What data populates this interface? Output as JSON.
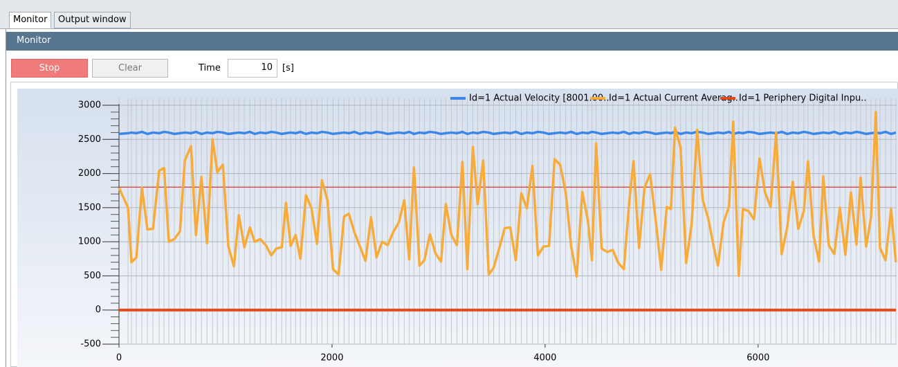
{
  "tabs": [
    "Monitor",
    "Output window"
  ],
  "header": {
    "title": "Monitor"
  },
  "toolbar": {
    "stop": "Stop",
    "clear": "Clear",
    "time_label": "Time",
    "time_value": 10,
    "time_unit": "[s]"
  },
  "chart_data": {
    "type": "line",
    "x": [
      0,
      85,
      117,
      163,
      215,
      267,
      319,
      377,
      423,
      468,
      520,
      572,
      618,
      676,
      722,
      774,
      826,
      878,
      923,
      975,
      1027,
      1079,
      1125,
      1177,
      1229,
      1274,
      1326,
      1378,
      1430,
      1476,
      1528,
      1567,
      1612,
      1658,
      1703,
      1755,
      1807,
      1859,
      1905,
      1957,
      2009,
      2061,
      2113,
      2158,
      2210,
      2262,
      2314,
      2366,
      2418,
      2470,
      2522,
      2574,
      2626,
      2678,
      2724,
      2769,
      2821,
      2867,
      2919,
      2971,
      3023,
      3068,
      3120,
      3172,
      3224,
      3270,
      3322,
      3367,
      3419,
      3471,
      3517,
      3569,
      3621,
      3673,
      3725,
      3777,
      3829,
      3881,
      3933,
      3985,
      4037,
      4089,
      4141,
      4193,
      4245,
      4297,
      4349,
      4401,
      4440,
      4479,
      4531,
      4583,
      4635,
      4687,
      4739,
      4791,
      4830,
      4882,
      4934,
      4986,
      5038,
      5090,
      5142,
      5181,
      5220,
      5272,
      5324,
      5376,
      5428,
      5480,
      5532,
      5584,
      5623,
      5675,
      5727,
      5766,
      5818,
      5857,
      5909,
      5961,
      6013,
      6065,
      6117,
      6169,
      6221,
      6273,
      6325,
      6377,
      6429,
      6468,
      6520,
      6572,
      6611,
      6663,
      6715,
      6767,
      6819,
      6871,
      6923,
      6962,
      7014,
      7059,
      7105,
      7144,
      7196,
      7248,
      7293
    ],
    "series": [
      {
        "name": "Id=1 Actual Velocity [8001.00..",
        "color": "#3d85e6",
        "values": [
          2580,
          2590,
          2600,
          2590,
          2610,
          2580,
          2600,
          2590,
          2610,
          2600,
          2580,
          2590,
          2600,
          2590,
          2610,
          2580,
          2600,
          2590,
          2610,
          2600,
          2580,
          2590,
          2600,
          2590,
          2610,
          2580,
          2600,
          2590,
          2610,
          2600,
          2580,
          2590,
          2600,
          2590,
          2610,
          2580,
          2600,
          2590,
          2610,
          2600,
          2580,
          2590,
          2600,
          2590,
          2610,
          2580,
          2600,
          2590,
          2610,
          2600,
          2580,
          2590,
          2600,
          2590,
          2610,
          2580,
          2600,
          2590,
          2610,
          2600,
          2580,
          2590,
          2600,
          2590,
          2610,
          2580,
          2600,
          2590,
          2610,
          2600,
          2580,
          2590,
          2600,
          2590,
          2610,
          2580,
          2600,
          2590,
          2610,
          2600,
          2580,
          2590,
          2600,
          2590,
          2610,
          2580,
          2600,
          2590,
          2610,
          2600,
          2580,
          2590,
          2600,
          2590,
          2610,
          2580,
          2600,
          2590,
          2610,
          2600,
          2580,
          2590,
          2600,
          2590,
          2610,
          2580,
          2600,
          2590,
          2610,
          2600,
          2580,
          2590,
          2600,
          2590,
          2610,
          2580,
          2600,
          2590,
          2610,
          2600,
          2580,
          2590,
          2600,
          2590,
          2610,
          2580,
          2600,
          2590,
          2610,
          2600,
          2580,
          2590,
          2600,
          2590,
          2610,
          2580,
          2600,
          2590,
          2610,
          2600,
          2580,
          2590,
          2600,
          2590,
          2610,
          2580,
          2600
        ]
      },
      {
        "name": "Id=1 Actual Current Averag..",
        "color": "#f7ab3a",
        "values": [
          1790,
          1500,
          700,
          770,
          1790,
          1180,
          1190,
          2040,
          2080,
          1000,
          1040,
          1150,
          2190,
          2400,
          1100,
          1950,
          980,
          2500,
          2020,
          2130,
          930,
          640,
          1390,
          920,
          1210,
          1000,
          1040,
          950,
          800,
          900,
          920,
          1570,
          940,
          1100,
          750,
          1680,
          1490,
          970,
          1900,
          1610,
          600,
          520,
          1370,
          1410,
          1140,
          930,
          720,
          1360,
          770,
          1000,
          950,
          1140,
          1280,
          1610,
          740,
          2090,
          650,
          730,
          1110,
          830,
          710,
          1550,
          1100,
          950,
          2170,
          600,
          2390,
          1550,
          2190,
          520,
          620,
          900,
          1200,
          1210,
          730,
          1710,
          1490,
          2110,
          800,
          930,
          940,
          2210,
          2130,
          1730,
          930,
          490,
          1730,
          1320,
          730,
          2440,
          900,
          850,
          880,
          690,
          600,
          1600,
          2180,
          910,
          1800,
          1990,
          1320,
          590,
          1510,
          1480,
          2670,
          2380,
          690,
          1260,
          2640,
          1610,
          1340,
          920,
          650,
          1280,
          1520,
          2760,
          500,
          1480,
          1450,
          1330,
          2220,
          1720,
          1510,
          2600,
          820,
          1210,
          1880,
          1190,
          1450,
          2180,
          1090,
          710,
          1960,
          950,
          820,
          1500,
          810,
          1720,
          960,
          1940,
          930,
          1350,
          2900,
          910,
          730,
          1480,
          700
        ]
      },
      {
        "name": "Id=1 Periphery Digital Inpu..",
        "color": "#e04b1a",
        "values": [
          0,
          0,
          0,
          0,
          0,
          0,
          0,
          0,
          0,
          0,
          0,
          0,
          0,
          0,
          0,
          0,
          0,
          0,
          0,
          0,
          0,
          0,
          0,
          0,
          0,
          0,
          0,
          0,
          0,
          0,
          0,
          0,
          0,
          0,
          0,
          0,
          0,
          0,
          0,
          0,
          0,
          0,
          0,
          0,
          0,
          0,
          0,
          0,
          0,
          0,
          0,
          0,
          0,
          0,
          0,
          0,
          0,
          0,
          0,
          0,
          0,
          0,
          0,
          0,
          0,
          0,
          0,
          0,
          0,
          0,
          0,
          0,
          0,
          0,
          0,
          0,
          0,
          0,
          0,
          0,
          0,
          0,
          0,
          0,
          0,
          0,
          0,
          0,
          0,
          0,
          0,
          0,
          0,
          0,
          0,
          0,
          0,
          0,
          0,
          0,
          0,
          0,
          0,
          0,
          0,
          0,
          0,
          0,
          0,
          0,
          0,
          0,
          0,
          0,
          0,
          0,
          0,
          0,
          0,
          0,
          0,
          0,
          0,
          0,
          0,
          0,
          0,
          0,
          0,
          0,
          0,
          0,
          0,
          0,
          0,
          0,
          0,
          0,
          0,
          0,
          0,
          0,
          0,
          0,
          0,
          0,
          0
        ]
      }
    ],
    "reference_line": 1800,
    "reference_color": "#e03030",
    "xlim": [
      0,
      7300
    ],
    "xticks": [
      0,
      2000,
      4000,
      6000
    ],
    "ylim": [
      -500,
      3000
    ],
    "yticks": [
      -500,
      0,
      500,
      1000,
      1500,
      2000,
      2500,
      3000
    ],
    "grid": true,
    "legend": "top"
  }
}
